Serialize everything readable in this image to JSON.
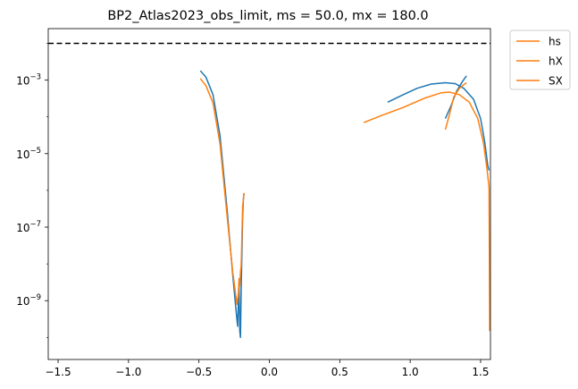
{
  "chart_data": {
    "type": "line",
    "title": "BP2_Atlas2023_obs_limit, ms = 50.0, mx = 180.0",
    "xlabel": "",
    "ylabel": "",
    "yscale": "log",
    "xlim": [
      -1.57,
      1.57
    ],
    "ylim_log10": [
      -10.6,
      -1.6
    ],
    "x_ticks": [
      -1.5,
      -1.0,
      -0.5,
      0.0,
      0.5,
      1.0,
      1.5
    ],
    "x_tick_labels": [
      "−1.5",
      "−1.0",
      "−0.5",
      "0.0",
      "0.5",
      "1.0",
      "1.5"
    ],
    "y_ticks_log10": [
      -9,
      -7,
      -5,
      -3
    ],
    "y_tick_labels": [
      {
        "base": "10",
        "exp": "−9"
      },
      {
        "base": "10",
        "exp": "−7"
      },
      {
        "base": "10",
        "exp": "−5"
      },
      {
        "base": "10",
        "exp": "−3"
      }
    ],
    "limit_line": {
      "y": 0.01,
      "style": "dashed",
      "color": "#000000"
    },
    "legend": {
      "placement": "outside-top-right",
      "entries": [
        "hs",
        "hX",
        "SX"
      ],
      "color": "#ff7f0e"
    },
    "colors": {
      "blue": "#1f77b4",
      "orange": "#ff7f0e"
    },
    "series": [
      {
        "color": "#1f77b4",
        "segments": [
          [
            [
              -0.49,
              0.0018
            ],
            [
              -0.45,
              0.0012
            ],
            [
              -0.4,
              0.0004
            ],
            [
              -0.35,
              3e-05
            ],
            [
              -0.3,
              3e-07
            ],
            [
              -0.26,
              5e-09
            ],
            [
              -0.23,
              3e-10
            ],
            [
              -0.225,
              2e-10
            ],
            [
              -0.22,
              1e-09
            ],
            [
              -0.215,
              2.5e-09
            ],
            [
              -0.21,
              1.5e-10
            ],
            [
              -0.205,
              1e-10
            ],
            [
              -0.2,
              2e-09
            ],
            [
              -0.195,
              1.8e-08
            ],
            [
              -0.19,
              1.7e-07
            ],
            [
              -0.185,
              5.3e-07
            ],
            [
              -0.18,
              8.2e-07
            ]
          ],
          [
            [
              0.84,
              0.00025
            ],
            [
              0.95,
              0.0004
            ],
            [
              1.05,
              0.0006
            ],
            [
              1.15,
              0.00078
            ],
            [
              1.25,
              0.00085
            ],
            [
              1.32,
              0.0008
            ],
            [
              1.38,
              0.0006
            ],
            [
              1.45,
              0.0003
            ],
            [
              1.5,
              9e-05
            ],
            [
              1.53,
              2e-05
            ],
            [
              1.55,
              5e-06
            ],
            [
              1.56,
              3.5e-06
            ]
          ],
          [
            [
              1.25,
              9e-05
            ],
            [
              1.29,
              0.0002
            ],
            [
              1.33,
              0.0005
            ],
            [
              1.37,
              0.0009
            ],
            [
              1.4,
              0.0013
            ]
          ]
        ]
      },
      {
        "color": "#ff7f0e",
        "segments": [
          [
            [
              -0.49,
              0.0011
            ],
            [
              -0.45,
              0.0007
            ],
            [
              -0.4,
              0.00024
            ],
            [
              -0.35,
              1.8e-05
            ],
            [
              -0.3,
              2e-07
            ],
            [
              -0.26,
              6e-09
            ],
            [
              -0.23,
              8e-10
            ],
            [
              -0.22,
              1.5e-09
            ],
            [
              -0.215,
              4e-09
            ],
            [
              -0.21,
              2.5e-09
            ],
            [
              -0.205,
              6e-09
            ],
            [
              -0.2,
              9e-09
            ],
            [
              -0.195,
              5e-08
            ],
            [
              -0.19,
              3.5e-07
            ],
            [
              -0.18,
              8.5e-07
            ]
          ],
          [
            [
              0.67,
              7e-05
            ],
            [
              0.8,
              0.00011
            ],
            [
              0.95,
              0.00018
            ],
            [
              1.1,
              0.00032
            ],
            [
              1.22,
              0.00045
            ],
            [
              1.28,
              0.00047
            ],
            [
              1.35,
              0.0004
            ],
            [
              1.42,
              0.00025
            ],
            [
              1.48,
              9e-05
            ],
            [
              1.52,
              2e-05
            ],
            [
              1.545,
              4e-06
            ],
            [
              1.56,
              1.2e-06
            ],
            [
              1.565,
              1.5e-10
            ]
          ],
          [
            [
              1.25,
              4.5e-05
            ],
            [
              1.28,
              0.00012
            ],
            [
              1.31,
              0.00035
            ],
            [
              1.35,
              0.0006
            ],
            [
              1.38,
              0.00075
            ],
            [
              1.4,
              0.00085
            ]
          ]
        ]
      }
    ]
  }
}
